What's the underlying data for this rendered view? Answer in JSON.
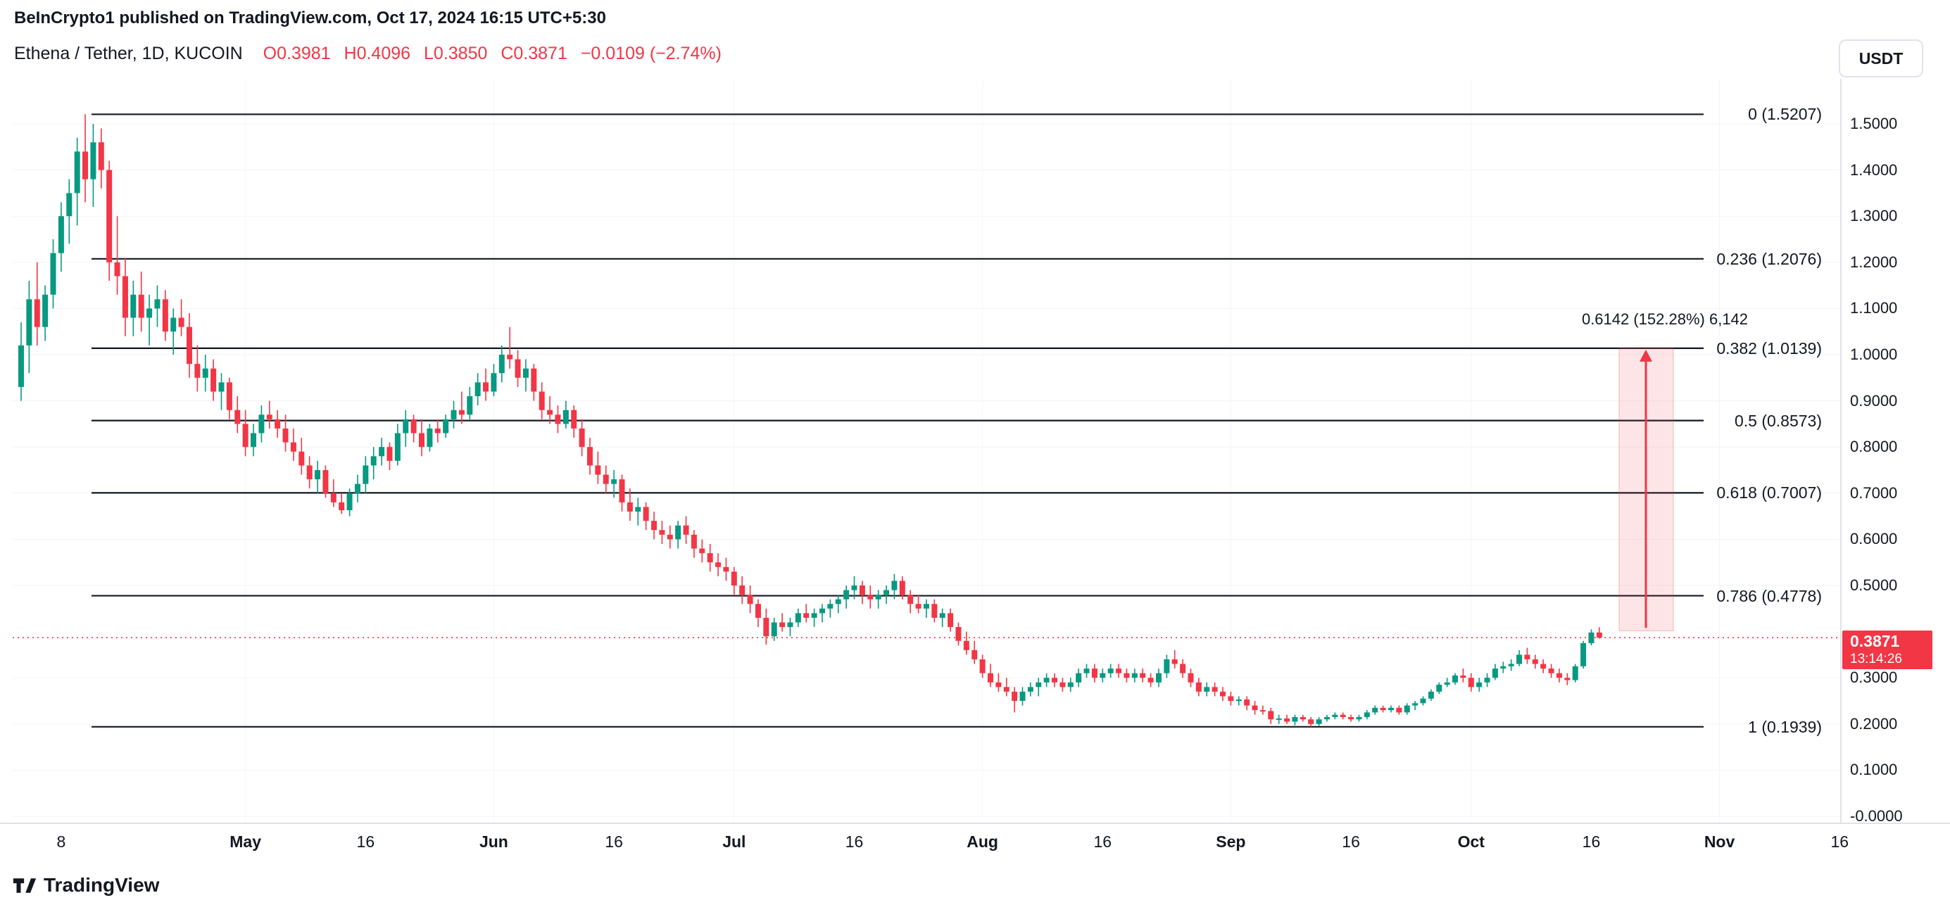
{
  "header": {
    "attribution": "BeInCrypto1 published on TradingView.com, Oct 17, 2024 16:15 UTC+5:30",
    "symbol": "Ethena / Tether, 1D, KUCOIN",
    "open": "O0.3981",
    "high": "H0.4096",
    "low": "L0.3850",
    "close": "C0.3871",
    "change": "−0.0109 (−2.74%)"
  },
  "currency_button": "USDT",
  "price_label": {
    "price": "0.3871",
    "countdown": "13:14:26"
  },
  "watermark": "TradingView",
  "icons": {
    "watermark_logo": "tradingview-logo"
  },
  "colors": {
    "up": "#089981",
    "down": "#f23645",
    "fib_line": "#131722",
    "axis_border": "#d6d9e0",
    "accent_red": "#f23645"
  },
  "chart_data": {
    "type": "candlestick",
    "symbol": "Ethena / Tether",
    "interval": "1D",
    "exchange": "KUCOIN",
    "start_date": "2024-04-03",
    "ohlc_format": [
      "open",
      "high",
      "low",
      "close"
    ],
    "last_price": 0.3871,
    "up_color": "#089981",
    "down_color": "#f23645",
    "y_axis": {
      "min": 0.0,
      "max": 1.55,
      "tick_step": 0.1
    },
    "fib_levels": [
      {
        "label": "0 (1.5207)",
        "value": 1.5207
      },
      {
        "label": "0.236 (1.2076)",
        "value": 1.2076
      },
      {
        "label": "0.382 (1.0139)",
        "value": 1.0139
      },
      {
        "label": "0.5 (0.8573)",
        "value": 0.8573
      },
      {
        "label": "0.618 (0.7007)",
        "value": 0.7007
      },
      {
        "label": "0.786 (0.4778)",
        "value": 0.4778
      },
      {
        "label": "1 (0.1939)",
        "value": 0.1939
      }
    ],
    "projection": {
      "label": "0.6142 (152.28%) 6,142",
      "from_price": 0.402,
      "to_price": 1.0139
    },
    "y_ticks": [
      {
        "label": "1.5000",
        "value": 1.5
      },
      {
        "label": "1.4000",
        "value": 1.4
      },
      {
        "label": "1.3000",
        "value": 1.3
      },
      {
        "label": "1.2000",
        "value": 1.2
      },
      {
        "label": "1.1000",
        "value": 1.1
      },
      {
        "label": "1.0000",
        "value": 1.0
      },
      {
        "label": "0.9000",
        "value": 0.9
      },
      {
        "label": "0.8000",
        "value": 0.8
      },
      {
        "label": "0.7000",
        "value": 0.7
      },
      {
        "label": "0.6000",
        "value": 0.6
      },
      {
        "label": "0.5000",
        "value": 0.5
      },
      {
        "label": "0.3000",
        "value": 0.3
      },
      {
        "label": "0.2000",
        "value": 0.2
      },
      {
        "label": "0.1000",
        "value": 0.1
      },
      {
        "label": "-0.0000",
        "value": 0.0
      }
    ],
    "x_labels": [
      {
        "text": "8",
        "index": 5,
        "major": false
      },
      {
        "text": "May",
        "index": 28,
        "major": true
      },
      {
        "text": "16",
        "index": 43,
        "major": false
      },
      {
        "text": "Jun",
        "index": 59,
        "major": true
      },
      {
        "text": "16",
        "index": 74,
        "major": false
      },
      {
        "text": "Jul",
        "index": 89,
        "major": true
      },
      {
        "text": "16",
        "index": 104,
        "major": false
      },
      {
        "text": "Aug",
        "index": 120,
        "major": true
      },
      {
        "text": "16",
        "index": 135,
        "major": false
      },
      {
        "text": "Sep",
        "index": 151,
        "major": true
      },
      {
        "text": "16",
        "index": 166,
        "major": false
      },
      {
        "text": "Oct",
        "index": 181,
        "major": true
      },
      {
        "text": "16",
        "index": 196,
        "major": false
      },
      {
        "text": "Nov",
        "index": 212,
        "major": true
      },
      {
        "text": "16",
        "index": 227,
        "major": false
      }
    ],
    "candles": [
      [
        0.93,
        1.07,
        0.9,
        1.02
      ],
      [
        1.02,
        1.16,
        0.96,
        1.12
      ],
      [
        1.12,
        1.2,
        1.02,
        1.06
      ],
      [
        1.06,
        1.15,
        1.03,
        1.13
      ],
      [
        1.13,
        1.25,
        1.1,
        1.22
      ],
      [
        1.22,
        1.33,
        1.18,
        1.3
      ],
      [
        1.3,
        1.38,
        1.24,
        1.35
      ],
      [
        1.35,
        1.47,
        1.28,
        1.44
      ],
      [
        1.44,
        1.5207,
        1.33,
        1.38
      ],
      [
        1.38,
        1.5,
        1.32,
        1.46
      ],
      [
        1.46,
        1.49,
        1.36,
        1.4
      ],
      [
        1.4,
        1.42,
        1.16,
        1.2
      ],
      [
        1.2,
        1.3,
        1.13,
        1.17
      ],
      [
        1.17,
        1.21,
        1.04,
        1.08
      ],
      [
        1.08,
        1.16,
        1.04,
        1.13
      ],
      [
        1.13,
        1.18,
        1.05,
        1.08
      ],
      [
        1.08,
        1.13,
        1.02,
        1.1
      ],
      [
        1.1,
        1.15,
        1.06,
        1.12
      ],
      [
        1.12,
        1.14,
        1.03,
        1.05
      ],
      [
        1.05,
        1.1,
        1.0,
        1.08
      ],
      [
        1.08,
        1.12,
        1.04,
        1.06
      ],
      [
        1.06,
        1.09,
        0.95,
        0.98
      ],
      [
        0.98,
        1.02,
        0.92,
        0.95
      ],
      [
        0.95,
        1.0,
        0.92,
        0.97
      ],
      [
        0.97,
        0.99,
        0.9,
        0.92
      ],
      [
        0.92,
        0.96,
        0.88,
        0.94
      ],
      [
        0.94,
        0.95,
        0.86,
        0.88
      ],
      [
        0.88,
        0.91,
        0.83,
        0.85
      ],
      [
        0.85,
        0.88,
        0.78,
        0.8
      ],
      [
        0.8,
        0.85,
        0.78,
        0.83
      ],
      [
        0.83,
        0.89,
        0.81,
        0.87
      ],
      [
        0.87,
        0.9,
        0.84,
        0.86
      ],
      [
        0.86,
        0.88,
        0.82,
        0.84
      ],
      [
        0.84,
        0.87,
        0.79,
        0.81
      ],
      [
        0.81,
        0.84,
        0.77,
        0.79
      ],
      [
        0.79,
        0.82,
        0.74,
        0.76
      ],
      [
        0.76,
        0.78,
        0.71,
        0.73
      ],
      [
        0.73,
        0.77,
        0.7,
        0.75
      ],
      [
        0.75,
        0.76,
        0.69,
        0.7
      ],
      [
        0.7,
        0.73,
        0.67,
        0.68
      ],
      [
        0.68,
        0.7,
        0.655,
        0.663
      ],
      [
        0.663,
        0.71,
        0.65,
        0.7
      ],
      [
        0.7,
        0.74,
        0.68,
        0.72
      ],
      [
        0.72,
        0.78,
        0.7,
        0.76
      ],
      [
        0.76,
        0.8,
        0.73,
        0.78
      ],
      [
        0.78,
        0.82,
        0.76,
        0.8
      ],
      [
        0.8,
        0.81,
        0.75,
        0.77
      ],
      [
        0.77,
        0.85,
        0.76,
        0.83
      ],
      [
        0.83,
        0.88,
        0.8,
        0.86
      ],
      [
        0.86,
        0.87,
        0.81,
        0.83
      ],
      [
        0.83,
        0.86,
        0.78,
        0.8
      ],
      [
        0.8,
        0.85,
        0.79,
        0.84
      ],
      [
        0.84,
        0.86,
        0.81,
        0.83
      ],
      [
        0.83,
        0.87,
        0.82,
        0.86
      ],
      [
        0.86,
        0.9,
        0.84,
        0.88
      ],
      [
        0.88,
        0.92,
        0.85,
        0.87
      ],
      [
        0.87,
        0.93,
        0.86,
        0.91
      ],
      [
        0.91,
        0.96,
        0.89,
        0.94
      ],
      [
        0.94,
        0.97,
        0.9,
        0.92
      ],
      [
        0.92,
        0.98,
        0.91,
        0.96
      ],
      [
        0.96,
        1.02,
        0.94,
        1.0
      ],
      [
        1.0,
        1.06,
        0.97,
        0.99
      ],
      [
        0.99,
        1.01,
        0.93,
        0.95
      ],
      [
        0.95,
        0.99,
        0.92,
        0.97
      ],
      [
        0.97,
        0.98,
        0.9,
        0.92
      ],
      [
        0.92,
        0.94,
        0.86,
        0.88
      ],
      [
        0.88,
        0.91,
        0.85,
        0.87
      ],
      [
        0.87,
        0.89,
        0.83,
        0.85
      ],
      [
        0.85,
        0.9,
        0.84,
        0.88
      ],
      [
        0.88,
        0.89,
        0.82,
        0.84
      ],
      [
        0.84,
        0.86,
        0.78,
        0.8
      ],
      [
        0.8,
        0.82,
        0.74,
        0.76
      ],
      [
        0.76,
        0.79,
        0.72,
        0.74
      ],
      [
        0.74,
        0.76,
        0.7,
        0.72
      ],
      [
        0.72,
        0.75,
        0.69,
        0.73
      ],
      [
        0.73,
        0.74,
        0.66,
        0.68
      ],
      [
        0.68,
        0.71,
        0.64,
        0.66
      ],
      [
        0.66,
        0.69,
        0.63,
        0.67
      ],
      [
        0.67,
        0.68,
        0.62,
        0.64
      ],
      [
        0.64,
        0.66,
        0.6,
        0.62
      ],
      [
        0.62,
        0.64,
        0.59,
        0.61
      ],
      [
        0.61,
        0.63,
        0.58,
        0.6
      ],
      [
        0.6,
        0.64,
        0.58,
        0.63
      ],
      [
        0.63,
        0.65,
        0.59,
        0.61
      ],
      [
        0.61,
        0.62,
        0.56,
        0.58
      ],
      [
        0.58,
        0.6,
        0.55,
        0.57
      ],
      [
        0.57,
        0.59,
        0.53,
        0.55
      ],
      [
        0.55,
        0.57,
        0.52,
        0.54
      ],
      [
        0.54,
        0.56,
        0.51,
        0.53
      ],
      [
        0.53,
        0.54,
        0.48,
        0.5
      ],
      [
        0.5,
        0.52,
        0.46,
        0.48
      ],
      [
        0.48,
        0.5,
        0.44,
        0.46
      ],
      [
        0.46,
        0.47,
        0.41,
        0.43
      ],
      [
        0.43,
        0.45,
        0.372,
        0.39
      ],
      [
        0.39,
        0.43,
        0.38,
        0.42
      ],
      [
        0.42,
        0.44,
        0.4,
        0.41
      ],
      [
        0.41,
        0.43,
        0.39,
        0.42
      ],
      [
        0.42,
        0.45,
        0.41,
        0.44
      ],
      [
        0.44,
        0.46,
        0.42,
        0.43
      ],
      [
        0.43,
        0.45,
        0.41,
        0.44
      ],
      [
        0.44,
        0.46,
        0.42,
        0.45
      ],
      [
        0.45,
        0.47,
        0.43,
        0.46
      ],
      [
        0.46,
        0.48,
        0.44,
        0.47
      ],
      [
        0.47,
        0.5,
        0.45,
        0.49
      ],
      [
        0.49,
        0.52,
        0.47,
        0.5
      ],
      [
        0.5,
        0.51,
        0.46,
        0.48
      ],
      [
        0.48,
        0.5,
        0.45,
        0.47
      ],
      [
        0.47,
        0.49,
        0.45,
        0.48
      ],
      [
        0.48,
        0.5,
        0.46,
        0.49
      ],
      [
        0.49,
        0.525,
        0.47,
        0.51
      ],
      [
        0.51,
        0.52,
        0.47,
        0.48
      ],
      [
        0.48,
        0.49,
        0.44,
        0.46
      ],
      [
        0.46,
        0.48,
        0.44,
        0.45
      ],
      [
        0.45,
        0.47,
        0.43,
        0.46
      ],
      [
        0.46,
        0.47,
        0.42,
        0.43
      ],
      [
        0.43,
        0.45,
        0.41,
        0.44
      ],
      [
        0.44,
        0.45,
        0.4,
        0.41
      ],
      [
        0.41,
        0.42,
        0.37,
        0.38
      ],
      [
        0.38,
        0.4,
        0.35,
        0.36
      ],
      [
        0.36,
        0.38,
        0.33,
        0.34
      ],
      [
        0.34,
        0.35,
        0.3,
        0.31
      ],
      [
        0.31,
        0.33,
        0.28,
        0.29
      ],
      [
        0.29,
        0.31,
        0.27,
        0.28
      ],
      [
        0.28,
        0.3,
        0.26,
        0.27
      ],
      [
        0.27,
        0.28,
        0.225,
        0.25
      ],
      [
        0.25,
        0.28,
        0.24,
        0.27
      ],
      [
        0.27,
        0.29,
        0.26,
        0.28
      ],
      [
        0.28,
        0.3,
        0.26,
        0.29
      ],
      [
        0.29,
        0.31,
        0.28,
        0.3
      ],
      [
        0.3,
        0.31,
        0.28,
        0.29
      ],
      [
        0.29,
        0.3,
        0.27,
        0.28
      ],
      [
        0.28,
        0.3,
        0.27,
        0.29
      ],
      [
        0.29,
        0.32,
        0.28,
        0.31
      ],
      [
        0.31,
        0.33,
        0.3,
        0.32
      ],
      [
        0.32,
        0.33,
        0.29,
        0.3
      ],
      [
        0.3,
        0.32,
        0.29,
        0.31
      ],
      [
        0.31,
        0.33,
        0.3,
        0.32
      ],
      [
        0.32,
        0.33,
        0.3,
        0.31
      ],
      [
        0.31,
        0.32,
        0.29,
        0.3
      ],
      [
        0.3,
        0.32,
        0.29,
        0.31
      ],
      [
        0.31,
        0.32,
        0.29,
        0.3
      ],
      [
        0.3,
        0.31,
        0.28,
        0.29
      ],
      [
        0.29,
        0.32,
        0.28,
        0.31
      ],
      [
        0.31,
        0.35,
        0.3,
        0.34
      ],
      [
        0.34,
        0.36,
        0.32,
        0.33
      ],
      [
        0.33,
        0.34,
        0.3,
        0.31
      ],
      [
        0.31,
        0.32,
        0.28,
        0.29
      ],
      [
        0.29,
        0.3,
        0.26,
        0.27
      ],
      [
        0.27,
        0.29,
        0.26,
        0.28
      ],
      [
        0.28,
        0.29,
        0.26,
        0.27
      ],
      [
        0.27,
        0.28,
        0.25,
        0.26
      ],
      [
        0.26,
        0.27,
        0.24,
        0.25
      ],
      [
        0.25,
        0.26,
        0.24,
        0.253
      ],
      [
        0.253,
        0.26,
        0.23,
        0.24
      ],
      [
        0.24,
        0.25,
        0.22,
        0.23
      ],
      [
        0.23,
        0.24,
        0.22,
        0.228
      ],
      [
        0.228,
        0.235,
        0.2,
        0.21
      ],
      [
        0.21,
        0.22,
        0.2,
        0.212
      ],
      [
        0.212,
        0.22,
        0.2,
        0.205
      ],
      [
        0.205,
        0.22,
        0.197,
        0.215
      ],
      [
        0.215,
        0.22,
        0.205,
        0.21
      ],
      [
        0.21,
        0.215,
        0.1939,
        0.2
      ],
      [
        0.2,
        0.215,
        0.196,
        0.21
      ],
      [
        0.21,
        0.22,
        0.205,
        0.215
      ],
      [
        0.215,
        0.225,
        0.21,
        0.22
      ],
      [
        0.22,
        0.225,
        0.21,
        0.215
      ],
      [
        0.215,
        0.22,
        0.205,
        0.21
      ],
      [
        0.21,
        0.22,
        0.205,
        0.215
      ],
      [
        0.215,
        0.23,
        0.21,
        0.225
      ],
      [
        0.225,
        0.24,
        0.22,
        0.235
      ],
      [
        0.235,
        0.24,
        0.225,
        0.23
      ],
      [
        0.23,
        0.24,
        0.225,
        0.235
      ],
      [
        0.235,
        0.24,
        0.22,
        0.225
      ],
      [
        0.225,
        0.245,
        0.22,
        0.24
      ],
      [
        0.24,
        0.25,
        0.23,
        0.245
      ],
      [
        0.245,
        0.26,
        0.24,
        0.255
      ],
      [
        0.255,
        0.275,
        0.25,
        0.27
      ],
      [
        0.27,
        0.29,
        0.265,
        0.285
      ],
      [
        0.285,
        0.3,
        0.28,
        0.29
      ],
      [
        0.29,
        0.31,
        0.285,
        0.305
      ],
      [
        0.305,
        0.32,
        0.29,
        0.3
      ],
      [
        0.3,
        0.31,
        0.27,
        0.28
      ],
      [
        0.28,
        0.3,
        0.27,
        0.29
      ],
      [
        0.29,
        0.31,
        0.28,
        0.3
      ],
      [
        0.3,
        0.33,
        0.295,
        0.32
      ],
      [
        0.32,
        0.335,
        0.31,
        0.325
      ],
      [
        0.325,
        0.34,
        0.315,
        0.33
      ],
      [
        0.33,
        0.36,
        0.325,
        0.35
      ],
      [
        0.35,
        0.365,
        0.33,
        0.34
      ],
      [
        0.34,
        0.35,
        0.32,
        0.33
      ],
      [
        0.33,
        0.34,
        0.31,
        0.32
      ],
      [
        0.32,
        0.33,
        0.3,
        0.31
      ],
      [
        0.31,
        0.32,
        0.29,
        0.3
      ],
      [
        0.3,
        0.31,
        0.284,
        0.295
      ],
      [
        0.295,
        0.33,
        0.29,
        0.325
      ],
      [
        0.325,
        0.38,
        0.32,
        0.375
      ],
      [
        0.375,
        0.405,
        0.37,
        0.3981
      ],
      [
        0.3981,
        0.4096,
        0.385,
        0.3871
      ]
    ]
  }
}
